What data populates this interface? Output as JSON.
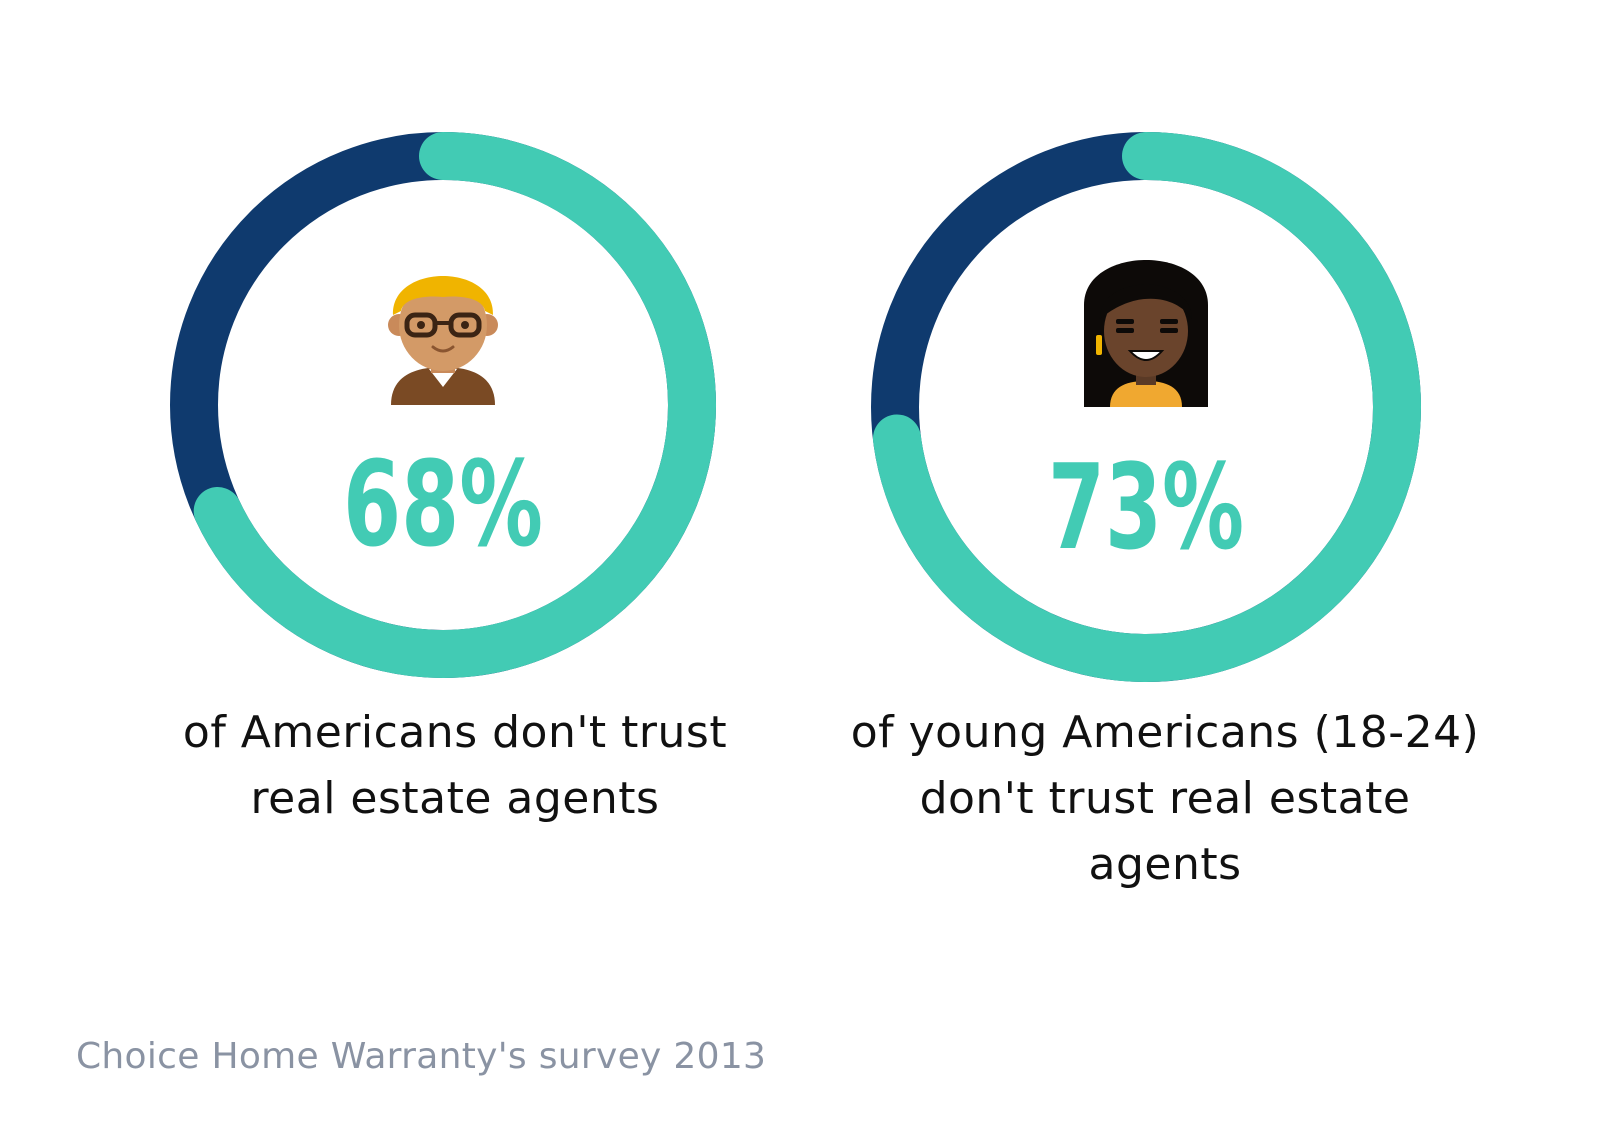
{
  "colors": {
    "teal": "#42cbb4",
    "navy": "#0f3a6e",
    "text": "#111111",
    "source": "#8a93a3",
    "background": "#ffffff"
  },
  "icons": {
    "left": "man-with-glasses-icon",
    "right": "woman-with-earring-icon"
  },
  "chart_data": [
    {
      "type": "pie",
      "style": "donut",
      "value_percent": 68,
      "remainder_percent": 32,
      "label": "68%",
      "caption_lines": [
        "of Americans don't trust",
        "real estate agents"
      ],
      "colors": {
        "value": "#42cbb4",
        "remainder": "#0f3a6e"
      }
    },
    {
      "type": "pie",
      "style": "donut",
      "value_percent": 73,
      "remainder_percent": 27,
      "label": "73%",
      "caption_lines": [
        "of young Americans (18-24)",
        "don't trust real estate",
        "agents"
      ],
      "colors": {
        "value": "#42cbb4",
        "remainder": "#0f3a6e"
      }
    }
  ],
  "source": "Choice Home Warranty's survey 2013"
}
